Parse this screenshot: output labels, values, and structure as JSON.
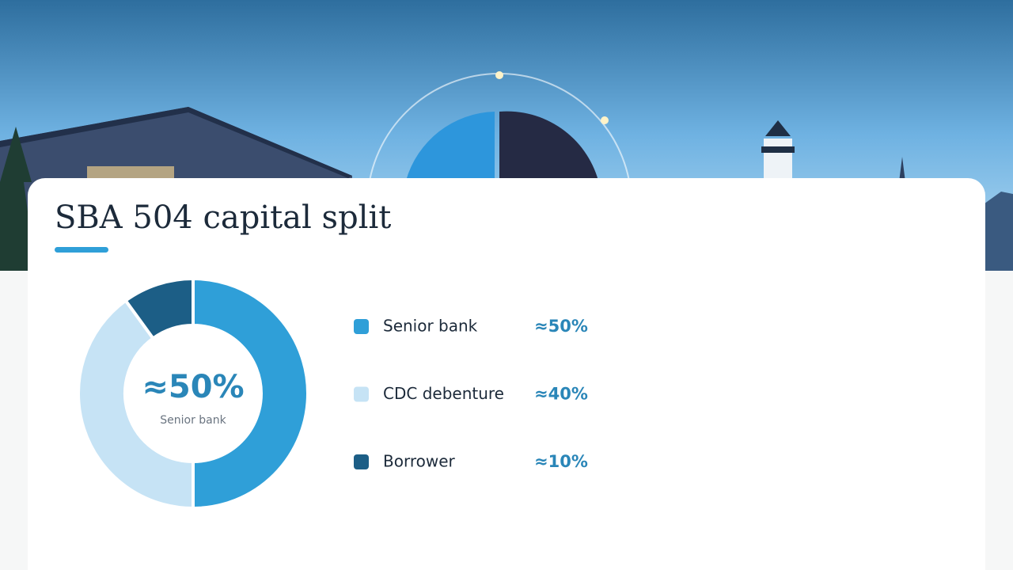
{
  "chart_data": {
    "type": "donut",
    "title": "SBA 504 capital split",
    "categories": [
      "Senior bank",
      "CDC debenture",
      "Borrower"
    ],
    "values": [
      50,
      40,
      10
    ],
    "value_labels": [
      "≈50%",
      "≈40%",
      "≈10%"
    ],
    "colors": [
      "#2f9fd8",
      "#c6e3f5",
      "#1c5e86"
    ]
  }
}
